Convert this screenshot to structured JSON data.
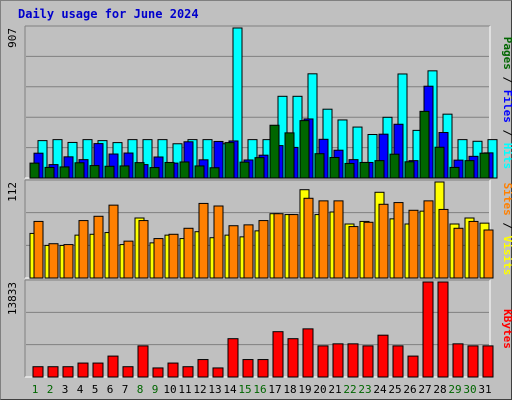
{
  "title": "Daily usage for June 2024",
  "colors": {
    "hits": "#00ffff",
    "files": "#0000ff",
    "pages": "#006600",
    "visits": "#ffff00",
    "sites": "#ff8000",
    "kbytes": "#ff0000",
    "weekday_label": "#000000",
    "weekend_label": "#006600"
  },
  "chart_data": [
    {
      "type": "bar",
      "title": "Daily usage for June 2024",
      "axis_label_parts": [
        {
          "text": "Pages",
          "color": "#006600"
        },
        {
          "text": " / ",
          "color": "#000000"
        },
        {
          "text": "Files",
          "color": "#0000ff"
        },
        {
          "text": " / ",
          "color": "#000000"
        },
        {
          "text": "Hits",
          "color": "#00ffff"
        }
      ],
      "ymax_label": "907",
      "ylim": [
        0,
        907
      ],
      "categories": [
        "1",
        "2",
        "3",
        "4",
        "5",
        "6",
        "7",
        "8",
        "9",
        "10",
        "11",
        "12",
        "13",
        "14",
        "15",
        "16",
        "17",
        "18",
        "19",
        "20",
        "21",
        "22",
        "23",
        "24",
        "25",
        "26",
        "27",
        "28",
        "29",
        "30",
        "31"
      ],
      "series": [
        {
          "name": "Hits",
          "color": "#00ffff",
          "values": [
            226,
            232,
            215,
            232,
            226,
            214,
            232,
            232,
            232,
            207,
            232,
            232,
            207,
            907,
            232,
            232,
            494,
            494,
            630,
            416,
            351,
            308,
            263,
            367,
            629,
            288,
            648,
            386,
            232,
            222,
            232
          ]
        },
        {
          "name": "Files",
          "color": "#0000ff",
          "values": [
            150,
            81,
            128,
            111,
            208,
            145,
            151,
            81,
            127,
            90,
            219,
            110,
            221,
            224,
            109,
            138,
            196,
            185,
            357,
            234,
            168,
            111,
            94,
            265,
            325,
            105,
            555,
            275,
            108,
            131,
            152
          ]
        },
        {
          "name": "Pages",
          "color": "#006600",
          "values": [
            90,
            64,
            67,
            92,
            75,
            71,
            73,
            93,
            63,
            94,
            97,
            73,
            62,
            214,
            96,
            123,
            319,
            273,
            347,
            147,
            124,
            88,
            94,
            105,
            144,
            98,
            403,
            186,
            64,
            105,
            150
          ]
        }
      ]
    },
    {
      "type": "bar",
      "axis_label_parts": [
        {
          "text": "Sites",
          "color": "#ff8000"
        },
        {
          "text": " / ",
          "color": "#000000"
        },
        {
          "text": "Visits",
          "color": "#ffff00"
        }
      ],
      "ymax_label": "112",
      "ylim": [
        0,
        112
      ],
      "categories": [
        "1",
        "2",
        "3",
        "4",
        "5",
        "6",
        "7",
        "8",
        "9",
        "10",
        "11",
        "12",
        "13",
        "14",
        "15",
        "16",
        "17",
        "18",
        "19",
        "20",
        "21",
        "22",
        "23",
        "24",
        "25",
        "26",
        "27",
        "28",
        "29",
        "30",
        "31"
      ],
      "series": [
        {
          "name": "Visits",
          "color": "#ffff00",
          "values": [
            52,
            38,
            38,
            50,
            51,
            53,
            39,
            70,
            41,
            50,
            46,
            54,
            47,
            50,
            48,
            55,
            75,
            74,
            103,
            74,
            77,
            63,
            66,
            100,
            69,
            63,
            78,
            112,
            63,
            70,
            64
          ]
        },
        {
          "name": "Sites",
          "color": "#ff8000",
          "values": [
            66,
            40,
            39,
            67,
            72,
            85,
            43,
            67,
            46,
            51,
            58,
            87,
            84,
            61,
            62,
            67,
            75,
            74,
            93,
            90,
            90,
            60,
            65,
            86,
            88,
            79,
            90,
            80,
            58,
            66,
            56
          ]
        }
      ]
    },
    {
      "type": "bar",
      "axis_label_parts": [
        {
          "text": "KBytes",
          "color": "#ff0000"
        }
      ],
      "ymax_label": "13833",
      "ylim": [
        0,
        13833
      ],
      "categories": [
        "1",
        "2",
        "3",
        "4",
        "5",
        "6",
        "7",
        "8",
        "9",
        "10",
        "11",
        "12",
        "13",
        "14",
        "15",
        "16",
        "17",
        "18",
        "19",
        "20",
        "21",
        "22",
        "23",
        "24",
        "25",
        "26",
        "27",
        "28",
        "29",
        "30",
        "31"
      ],
      "series": [
        {
          "name": "KBytes",
          "color": "#ff0000",
          "values": [
            1500,
            1500,
            1500,
            2030,
            2030,
            3045,
            1500,
            4530,
            1320,
            2030,
            1500,
            2540,
            1320,
            5580,
            2540,
            2540,
            6600,
            5580,
            7010,
            4530,
            4830,
            4830,
            4530,
            6090,
            4530,
            3045,
            13833,
            13833,
            4830,
            4530,
            4530
          ]
        }
      ]
    }
  ],
  "x_axis": {
    "day_labels": [
      "1",
      "2",
      "3",
      "4",
      "5",
      "6",
      "7",
      "8",
      "9",
      "10",
      "11",
      "12",
      "13",
      "14",
      "15",
      "16",
      "17",
      "18",
      "19",
      "20",
      "21",
      "22",
      "23",
      "24",
      "25",
      "26",
      "27",
      "28",
      "29",
      "30",
      "31"
    ],
    "weekend_days": [
      "1",
      "2",
      "8",
      "9",
      "15",
      "16",
      "22",
      "23",
      "29",
      "30"
    ]
  }
}
